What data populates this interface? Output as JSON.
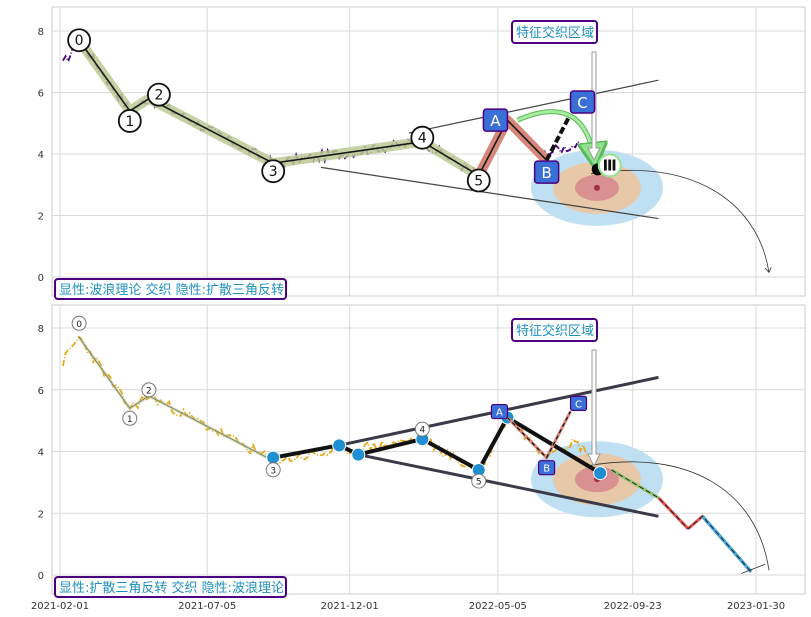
{
  "chart_data": [
    {
      "type": "line",
      "panel": "top",
      "caption": "显性:波浪理论 交织 隐性:扩散三角反转",
      "callout": "特征交织区域",
      "ylim": [
        -0.4,
        8.8
      ],
      "yticks": [
        "0",
        "2",
        "4",
        "6",
        "8"
      ],
      "grid": true,
      "price_color": "#4b0082",
      "wave_points": [
        {
          "label": "0",
          "x": "2021-02-21",
          "y": 7.7
        },
        {
          "label": "1",
          "x": "2021-04-15",
          "y": 5.4
        },
        {
          "label": "2",
          "x": "2021-05-05",
          "y": 5.8
        },
        {
          "label": "3",
          "x": "2021-09-12",
          "y": 3.7
        },
        {
          "label": "4",
          "x": "2022-02-15",
          "y": 4.4
        },
        {
          "label": "5",
          "x": "2022-04-15",
          "y": 3.3
        },
        {
          "label": "A",
          "x": "2022-05-15",
          "y": 5.1
        },
        {
          "label": "B",
          "x": "2022-06-25",
          "y": 3.8
        },
        {
          "label": "C",
          "x": "2022-07-20",
          "y": 5.3
        },
        {
          "label": "Ⅲ",
          "x": "2022-08-30",
          "y": 3.5
        }
      ]
    },
    {
      "type": "line",
      "panel": "bottom",
      "caption": "显性:扩散三角反转 交织 隐性:波浪理论",
      "callout": "特征交织区域",
      "ylim": [
        -0.6,
        8.8
      ],
      "yticks": [
        "0",
        "2",
        "4",
        "6",
        "8"
      ],
      "xticks": [
        "2021-02-01",
        "2021-07-05",
        "2021-12-01",
        "2022-05-05",
        "2022-09-23",
        "2023-01-30"
      ],
      "grid": true,
      "price_color": "#e6a817",
      "pattern_points": [
        {
          "x": "2021-09-12",
          "y": 3.8
        },
        {
          "x": "2021-11-20",
          "y": 4.2
        },
        {
          "x": "2021-12-10",
          "y": 3.9
        },
        {
          "x": "2022-02-15",
          "y": 4.4
        },
        {
          "x": "2022-04-15",
          "y": 3.4
        },
        {
          "x": "2022-05-15",
          "y": 5.1
        },
        {
          "x": "2022-08-20",
          "y": 3.3
        }
      ],
      "wave_labels": [
        "0",
        "1",
        "2",
        "3",
        "4",
        "5",
        "A",
        "B",
        "C"
      ],
      "projection": [
        {
          "x": "2022-09-01",
          "y": 3.4
        },
        {
          "x": "2022-10-20",
          "y": 2.5
        },
        {
          "x": "2022-11-20",
          "y": 1.5
        },
        {
          "x": "2022-12-05",
          "y": 1.9
        },
        {
          "x": "2023-01-25",
          "y": 0.1
        }
      ]
    }
  ]
}
